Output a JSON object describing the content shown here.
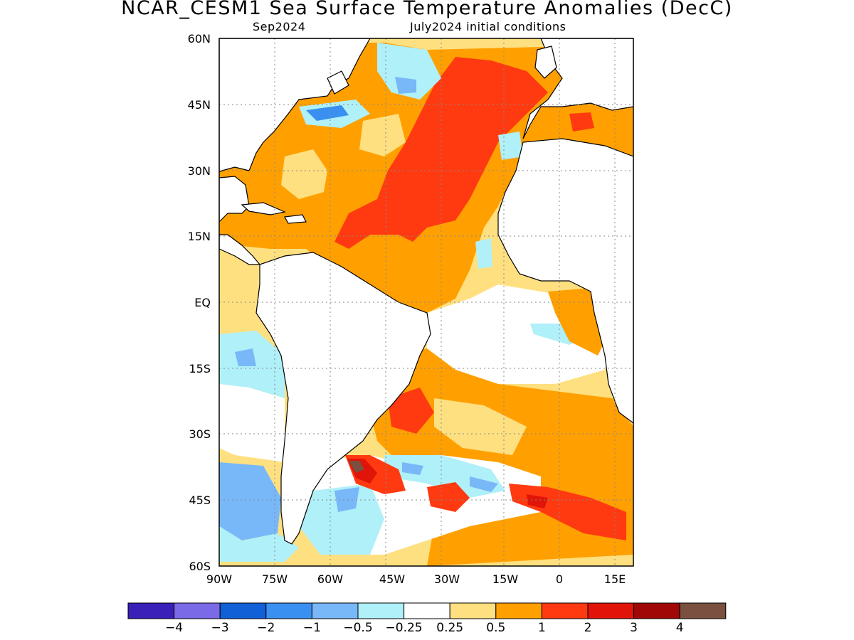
{
  "title": "NCAR_CESM1 Sea Surface Temperature Anomalies (DecC)",
  "subtitle_left": "Sep2024",
  "subtitle_right": "July2024 initial conditions",
  "lat_labels": [
    "60N",
    "45N",
    "30N",
    "15N",
    "EQ",
    "15S",
    "30S",
    "45S",
    "60S"
  ],
  "lon_labels": [
    "90W",
    "75W",
    "60W",
    "45W",
    "30W",
    "15W",
    "0",
    "15E"
  ],
  "colorbar": {
    "colors": [
      "#3a1fb8",
      "#7a6ae8",
      "#1060d8",
      "#3a90f0",
      "#78b8f8",
      "#b0f0f8",
      "#ffffff",
      "#ffe080",
      "#ffa000",
      "#ff3a10",
      "#e01408",
      "#a00808",
      "#7a5040"
    ],
    "labels": [
      "−4",
      "−3",
      "−2",
      "−1",
      "−0.5",
      "−0.25",
      "0.25",
      "0.5",
      "1",
      "2",
      "3",
      "4"
    ]
  },
  "colors": {
    "ocean_default": "#ffa000",
    "land": "#ffffff",
    "coast": "#000000",
    "grid": "#888888"
  }
}
